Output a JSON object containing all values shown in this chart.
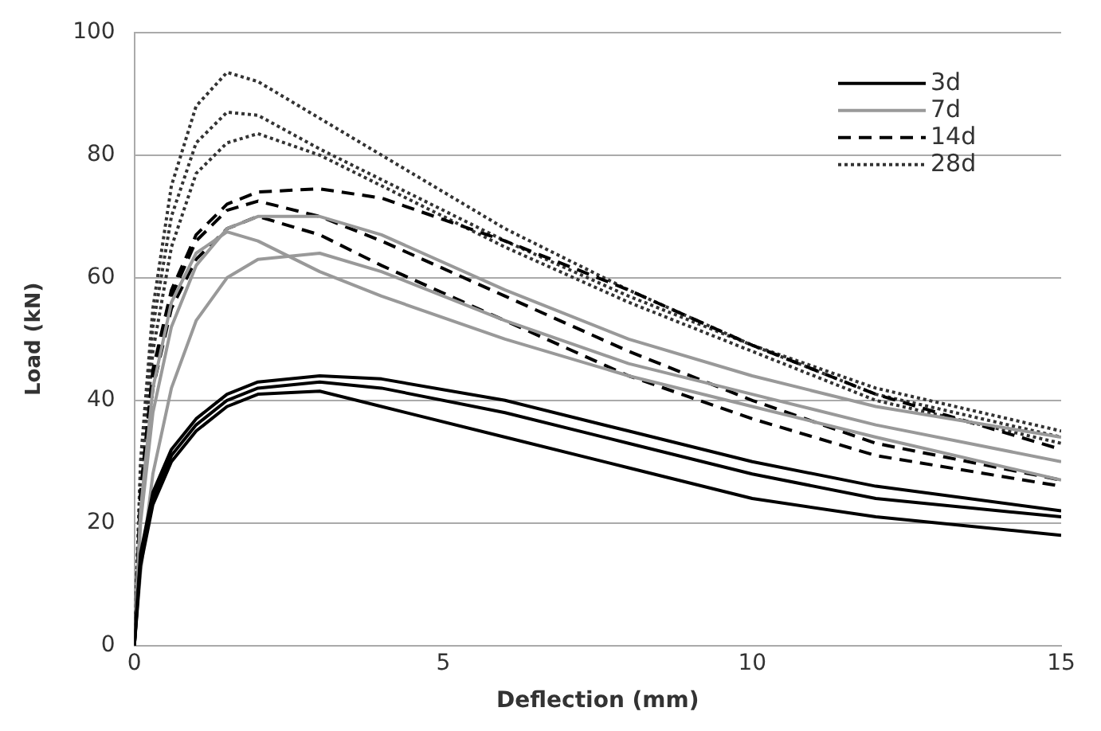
{
  "chart_data": {
    "type": "line",
    "xlabel": "Deflection (mm)",
    "ylabel": "Load (kN)",
    "xlim": [
      0,
      15
    ],
    "xticks": [
      0,
      5,
      10,
      15
    ],
    "ylim": [
      0,
      100
    ],
    "yticks": [
      0,
      20,
      40,
      60,
      80,
      100
    ],
    "grid": "y",
    "legend": "top right",
    "marker": "none",
    "x": [
      0,
      0.1,
      0.3,
      0.6,
      1,
      1.5,
      2,
      3,
      4,
      6,
      8,
      10,
      12,
      15
    ],
    "series": [
      {
        "name": "3d",
        "color": "#000000",
        "line_style": "solid",
        "values": [
          0,
          15,
          25,
          32,
          37,
          41,
          43,
          44,
          43.5,
          40,
          35,
          30,
          26,
          22
        ]
      },
      {
        "color": "#000000",
        "line_style": "solid",
        "values": [
          0,
          14,
          24,
          31,
          36,
          40,
          42,
          43,
          42,
          38,
          33,
          28,
          24,
          21
        ]
      },
      {
        "color": "#000000",
        "line_style": "solid",
        "values": [
          0,
          13,
          23,
          30,
          35,
          39,
          41,
          41.5,
          39,
          34,
          29,
          24,
          21,
          18
        ]
      },
      {
        "name": "7d",
        "color": "#999999",
        "line_style": "solid",
        "values": [
          0,
          20,
          38,
          52,
          62,
          68,
          70,
          70,
          67,
          58,
          50,
          44,
          39,
          34
        ]
      },
      {
        "color": "#999999",
        "line_style": "solid",
        "values": [
          0,
          22,
          42,
          56,
          64,
          67.5,
          66,
          61,
          57,
          50,
          44,
          39,
          34,
          27
        ]
      },
      {
        "color": "#999999",
        "line_style": "solid",
        "values": [
          0,
          12,
          28,
          42,
          53,
          60,
          63,
          64,
          61,
          53,
          46,
          41,
          36,
          30
        ]
      },
      {
        "name": "14d",
        "color": "#000000",
        "line_style": "dashed",
        "values": [
          0,
          25,
          45,
          58,
          67,
          72,
          74,
          74.5,
          73,
          66,
          58,
          49,
          41,
          32
        ]
      },
      {
        "color": "#000000",
        "line_style": "dashed",
        "values": [
          0,
          24,
          44,
          57,
          66,
          71,
          72.5,
          70,
          66,
          57,
          48,
          40,
          33,
          27
        ]
      },
      {
        "color": "#000000",
        "line_style": "dashed",
        "values": [
          0,
          23,
          42,
          55,
          63,
          68,
          70,
          67,
          62,
          53,
          44,
          37,
          31,
          26
        ]
      },
      {
        "name": "28d",
        "color": "#333333",
        "line_style": "dotted",
        "values": [
          0,
          30,
          55,
          75,
          88,
          93.5,
          92,
          86,
          80,
          68,
          58,
          49,
          42,
          35
        ]
      },
      {
        "color": "#333333",
        "line_style": "dotted",
        "values": [
          0,
          28,
          52,
          70,
          82,
          87,
          86.5,
          81,
          76,
          66,
          57,
          49,
          41,
          34
        ]
      },
      {
        "color": "#333333",
        "line_style": "dotted",
        "values": [
          0,
          26,
          48,
          65,
          77,
          82,
          83.5,
          80,
          75,
          65,
          56,
          48,
          40,
          33
        ]
      }
    ]
  }
}
